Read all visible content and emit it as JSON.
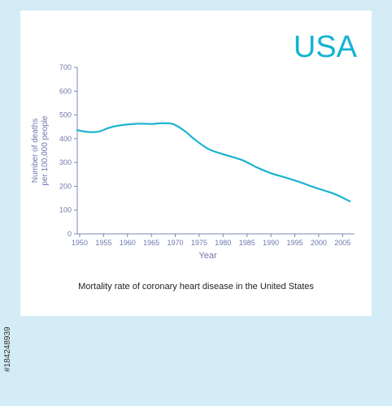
{
  "country_label": "USA",
  "caption": "Mortality rate of coronary heart disease in the United States",
  "side_id": "#184248939",
  "colors": {
    "line": "#1ab3d0",
    "axis": "#7c85b4",
    "text": "#6f79ad",
    "country": "#12b4d0"
  },
  "chart_data": {
    "type": "line",
    "title": "USA",
    "xlabel": "Year",
    "ylabel": "Number of deaths per 100,000 people",
    "ylabel_lines": [
      "Number of deaths",
      "per 100,000 people"
    ],
    "xlim": [
      1949.5,
      2007.5
    ],
    "ylim": [
      0,
      700
    ],
    "xticks": [
      1950,
      1955,
      1960,
      1965,
      1970,
      1975,
      1980,
      1985,
      1990,
      1995,
      2000,
      2005
    ],
    "yticks": [
      0,
      100,
      200,
      300,
      400,
      500,
      600,
      700
    ],
    "grid": false,
    "series": [
      {
        "x": [
          1949.5,
          1952,
          1954,
          1956,
          1958,
          1962,
          1965,
          1967,
          1969.5,
          1972,
          1974,
          1977,
          1980,
          1984,
          1987,
          1990,
          1993,
          1996,
          1999,
          2002,
          2004,
          2006.5
        ],
        "values": [
          436,
          428,
          430,
          445,
          455,
          463,
          462,
          465,
          462,
          432,
          398,
          356,
          335,
          310,
          280,
          255,
          237,
          218,
          196,
          177,
          162,
          137
        ]
      }
    ]
  }
}
